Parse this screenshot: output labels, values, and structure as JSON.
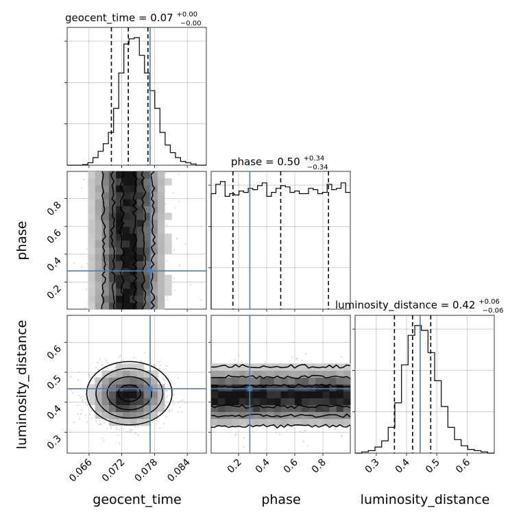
{
  "colors": {
    "truth": "#4682b4",
    "hist": "#000000",
    "grid": "#b0b0b0",
    "points": "#b8b8b8"
  },
  "chart_data": {
    "type": "corner",
    "grid": true,
    "parameters": [
      {
        "name": "geocent_time",
        "title": "geocent_time = 0.07",
        "median_label": "0.07",
        "err_plus": "+0.00",
        "err_minus": "−0.00",
        "range": [
          0.062,
          0.0875
        ],
        "ticks": [
          "0.066",
          "0.072",
          "0.078",
          "0.084"
        ],
        "tick_values": [
          0.066,
          0.072,
          0.078,
          0.084
        ],
        "quantiles": [
          0.0701,
          0.0732,
          0.0768
        ],
        "truth": 0.0772,
        "hist_bins": [
          0,
          0,
          0,
          0.5,
          2,
          6,
          11,
          17,
          26,
          45,
          73,
          96,
          100,
          101,
          87,
          73,
          59,
          45,
          26,
          16,
          10,
          6,
          3,
          2,
          1,
          0,
          0
        ]
      },
      {
        "name": "phase",
        "title": "phase = 0.50",
        "median_label": "0.50",
        "err_plus": "+0.34",
        "err_minus": "−0.34",
        "range": [
          0.005,
          0.995
        ],
        "ticks": [
          "0.2",
          "0.4",
          "0.6",
          "0.8"
        ],
        "tick_values": [
          0.2,
          0.4,
          0.6,
          0.8
        ],
        "quantiles": [
          0.16,
          0.5,
          0.84
        ],
        "truth": 0.28,
        "hist_bins": [
          86,
          93,
          95,
          84,
          86,
          85,
          88,
          87,
          90,
          89,
          92,
          94,
          84,
          87,
          90,
          92,
          91,
          87,
          88,
          86,
          86,
          90,
          89,
          86,
          87,
          93,
          89,
          90,
          94,
          87
        ]
      },
      {
        "name": "luminosity_distance",
        "title": "luminosity_distance = 0.42",
        "median_label": "0.42",
        "err_plus": "+0.06",
        "err_minus": "−0.06",
        "range": [
          0.23,
          0.69
        ],
        "ticks": [
          "0.3",
          "0.4",
          "0.5",
          "0.6"
        ],
        "tick_values": [
          0.3,
          0.4,
          0.5,
          0.6
        ],
        "quantiles": [
          0.36,
          0.42,
          0.48
        ],
        "truth": 0.445,
        "hist_bins": [
          0,
          1,
          2,
          5,
          10,
          21,
          41,
          72,
          96,
          104,
          100,
          82,
          59,
          38,
          21,
          11,
          6,
          3,
          2,
          1,
          0
        ]
      }
    ],
    "y_ticks": {
      "phase": [
        "0.2",
        "0.4",
        "0.6",
        "0.8"
      ],
      "luminosity_distance": [
        "0.3",
        "0.4",
        "0.5",
        "0.6"
      ]
    }
  }
}
